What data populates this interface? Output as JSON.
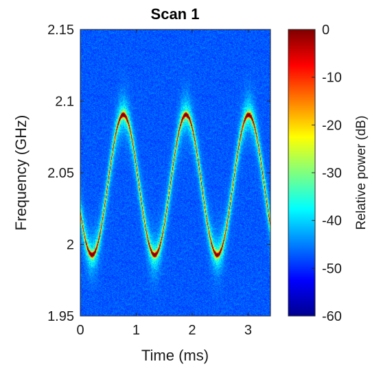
{
  "chart_data": {
    "type": "heatmap",
    "title": "Scan 1",
    "xlabel": "Time (ms)",
    "ylabel": "Frequency (GHz)",
    "xlim": [
      0,
      3.4
    ],
    "ylim": [
      1.95,
      2.15
    ],
    "x_ticks": [
      "0",
      "1",
      "2",
      "3"
    ],
    "x_tick_values": [
      0,
      1,
      2,
      3
    ],
    "y_ticks": [
      "1.95",
      "2",
      "2.05",
      "2.1",
      "2.15"
    ],
    "y_tick_values": [
      1.95,
      2.0,
      2.05,
      2.1,
      2.15
    ],
    "colorbar": {
      "label": "Relative power (dB)",
      "range": [
        -60,
        0
      ],
      "ticks": [
        "0",
        "-10",
        "-20",
        "-30",
        "-40",
        "-50",
        "-60"
      ],
      "tick_values": [
        0,
        -10,
        -20,
        -30,
        -40,
        -50,
        -60
      ],
      "colormap": "jet"
    },
    "signal": {
      "shape": "sinusoid",
      "center_ghz": 2.0415,
      "amplitude_ghz": 0.049,
      "period_ms": 1.12,
      "min_time_ms": 0.21
    },
    "background_color": "#1a1aa6"
  }
}
